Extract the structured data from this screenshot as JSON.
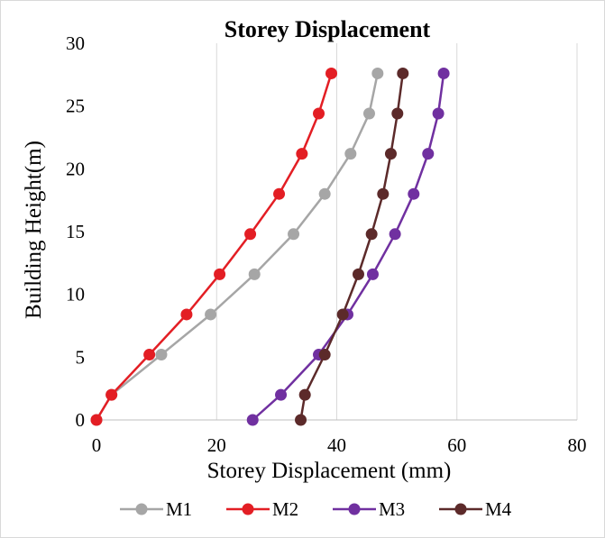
{
  "chart_data": {
    "type": "line",
    "title": "Storey Displacement",
    "xlabel": "Storey Displacement (mm)",
    "ylabel": "Building Height(m)",
    "xlim": [
      0,
      80
    ],
    "ylim": [
      0,
      30
    ],
    "xticks": [
      0,
      20,
      40,
      60,
      80
    ],
    "yticks": [
      0,
      5,
      10,
      15,
      20,
      25,
      30
    ],
    "grid": "vertical",
    "legend": "bottom",
    "y": [
      0,
      2,
      5.2,
      8.4,
      11.6,
      14.8,
      18,
      21.2,
      24.4,
      27.6
    ],
    "series": [
      {
        "name": "M1",
        "color": "#a6a6a6",
        "x": [
          0,
          2.5,
          10.8,
          19,
          26.3,
          32.8,
          38,
          42.3,
          45.4,
          46.8
        ]
      },
      {
        "name": "M2",
        "color": "#e31e24",
        "x": [
          0,
          2.5,
          8.8,
          15,
          20.5,
          25.6,
          30.4,
          34.2,
          37,
          39.1
        ]
      },
      {
        "name": "M3",
        "color": "#7030a0",
        "x": [
          26,
          30.7,
          37,
          41.8,
          46,
          49.7,
          52.8,
          55.2,
          56.9,
          57.8
        ]
      },
      {
        "name": "M4",
        "color": "#5c2a2a",
        "x": [
          34,
          34.7,
          38,
          41,
          43.6,
          45.8,
          47.7,
          49,
          50.1,
          51
        ]
      }
    ]
  }
}
